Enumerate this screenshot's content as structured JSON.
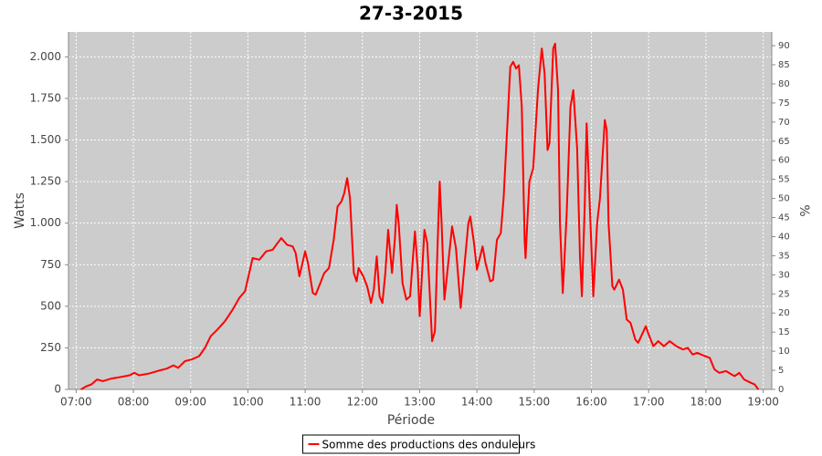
{
  "chart_data": {
    "type": "line",
    "title": "27-3-2015",
    "x_label": "Période",
    "y_label": "Watts",
    "y2_label": "%",
    "x": [
      "07:05",
      "07:11",
      "07:16",
      "07:22",
      "07:28",
      "07:37",
      "07:47",
      "07:56",
      "08:01",
      "08:06",
      "08:16",
      "08:25",
      "08:35",
      "08:42",
      "08:47",
      "08:54",
      "09:01",
      "09:09",
      "09:15",
      "09:21",
      "09:28",
      "09:36",
      "09:44",
      "09:51",
      "09:57",
      "10:05",
      "10:12",
      "10:19",
      "10:26",
      "10:31",
      "10:35",
      "10:41",
      "10:47",
      "10:50",
      "10:54",
      "11:00",
      "11:03",
      "11:08",
      "11:11",
      "11:16",
      "11:20",
      "11:25",
      "11:30",
      "11:34",
      "11:38",
      "11:41",
      "11:44",
      "11:47",
      "11:51",
      "11:54",
      "11:56",
      "12:01",
      "12:05",
      "12:09",
      "12:12",
      "12:15",
      "12:18",
      "12:21",
      "12:24",
      "12:27",
      "12:31",
      "12:34",
      "12:36",
      "12:38",
      "12:42",
      "12:46",
      "12:50",
      "12:55",
      "12:58",
      "13:00",
      "13:05",
      "13:08",
      "13:13",
      "13:16",
      "13:19",
      "13:21",
      "13:23",
      "13:26",
      "13:30",
      "13:34",
      "13:38",
      "13:43",
      "13:47",
      "13:51",
      "13:53",
      "13:57",
      "14:00",
      "14:06",
      "14:09",
      "14:14",
      "14:17",
      "14:21",
      "14:25",
      "14:28",
      "14:32",
      "14:35",
      "14:38",
      "14:41",
      "14:44",
      "14:47",
      "14:50",
      "14:51",
      "14:55",
      "14:59",
      "15:04",
      "15:08",
      "15:11",
      "15:14",
      "15:16",
      "15:20",
      "15:22",
      "15:25",
      "15:27",
      "15:30",
      "15:34",
      "15:38",
      "15:41",
      "15:45",
      "15:48",
      "15:50",
      "15:53",
      "15:55",
      "15:59",
      "16:02",
      "16:06",
      "16:09",
      "16:14",
      "16:16",
      "16:18",
      "16:22",
      "16:24",
      "16:29",
      "16:33",
      "16:37",
      "16:41",
      "16:46",
      "16:49",
      "16:53",
      "16:57",
      "17:00",
      "17:05",
      "17:10",
      "17:16",
      "17:22",
      "17:29",
      "17:36",
      "17:41",
      "17:46",
      "17:51",
      "17:59",
      "18:04",
      "18:09",
      "18:14",
      "18:21",
      "18:27",
      "18:30",
      "18:35",
      "18:40",
      "18:47",
      "18:51",
      "18:55"
    ],
    "series": [
      {
        "name": "Somme des productions des onduleurs",
        "color": "#ff0000",
        "values": [
          0,
          20,
          30,
          60,
          50,
          65,
          75,
          85,
          100,
          85,
          95,
          110,
          125,
          145,
          130,
          170,
          180,
          200,
          250,
          320,
          360,
          410,
          480,
          550,
          590,
          790,
          780,
          830,
          840,
          880,
          910,
          870,
          860,
          820,
          680,
          830,
          760,
          580,
          570,
          640,
          700,
          730,
          900,
          1100,
          1130,
          1180,
          1270,
          1150,
          700,
          650,
          730,
          680,
          620,
          520,
          600,
          800,
          560,
          520,
          700,
          960,
          700,
          900,
          1110,
          1000,
          640,
          540,
          560,
          950,
          720,
          440,
          960,
          880,
          290,
          350,
          900,
          1250,
          1000,
          540,
          760,
          980,
          850,
          490,
          750,
          1000,
          1040,
          880,
          720,
          860,
          760,
          650,
          660,
          900,
          940,
          1150,
          1600,
          1940,
          1970,
          1930,
          1950,
          1700,
          900,
          790,
          1250,
          1330,
          1800,
          2050,
          1900,
          1440,
          1480,
          2050,
          2080,
          1800,
          1000,
          580,
          1050,
          1700,
          1800,
          1450,
          800,
          560,
          1100,
          1600,
          1000,
          560,
          1000,
          1150,
          1620,
          1560,
          1000,
          620,
          600,
          660,
          600,
          420,
          400,
          300,
          280,
          330,
          380,
          330,
          260,
          290,
          260,
          290,
          260,
          240,
          250,
          210,
          220,
          200,
          190,
          120,
          100,
          110,
          90,
          80,
          100,
          60,
          40,
          30,
          0
        ]
      }
    ],
    "xlim": [
      "06:52",
      "19:09"
    ],
    "xticks": [
      "07:00",
      "08:00",
      "09:00",
      "10:00",
      "11:00",
      "12:00",
      "13:00",
      "14:00",
      "15:00",
      "16:00",
      "17:00",
      "18:00",
      "19:00"
    ],
    "ylim": [
      0,
      2150
    ],
    "yticks": [
      0,
      250,
      500,
      750,
      {
        "value": 1000,
        "label": "1.000"
      },
      {
        "value": 1250,
        "label": "1.250"
      },
      {
        "value": 1500,
        "label": "1.500"
      },
      {
        "value": 1750,
        "label": "1.750"
      },
      {
        "value": 2000,
        "label": "2.000"
      }
    ],
    "y2lim": [
      0,
      93.6
    ],
    "y2ticks": [
      0,
      5,
      10,
      15,
      20,
      25,
      30,
      35,
      40,
      45,
      50,
      55,
      60,
      65,
      70,
      75,
      80,
      85,
      90
    ],
    "grid": true,
    "legend": "bottom"
  }
}
